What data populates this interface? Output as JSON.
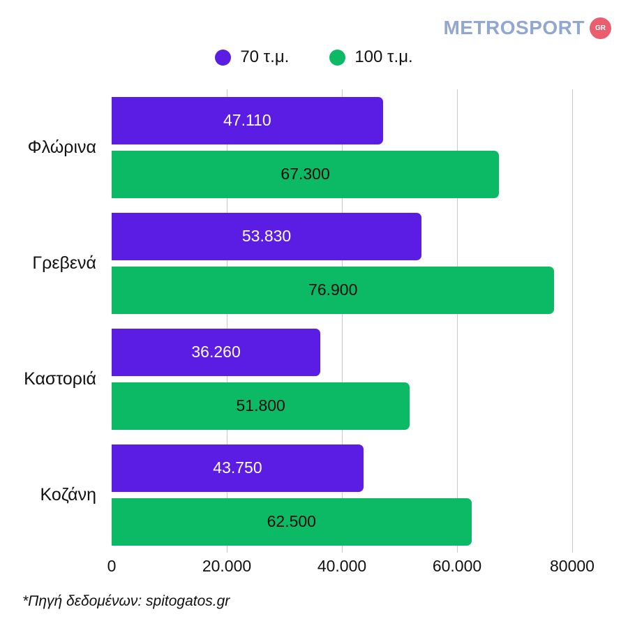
{
  "logo": {
    "text": "METROSPORT",
    "badge": "GR",
    "text_color": "#92a7cf",
    "badge_color": "#ea5e70"
  },
  "legend": [
    {
      "label": "70 τ.μ.",
      "color": "#5b1ce3"
    },
    {
      "label": "100 τ.μ.",
      "color": "#0cb965"
    }
  ],
  "chart_data": {
    "type": "bar",
    "orientation": "horizontal",
    "categories": [
      "Φλώρινα",
      "Γρεβενά",
      "Καστοριά",
      "Κοζάνη"
    ],
    "series": [
      {
        "name": "70 τ.μ.",
        "color": "#5b1ce3",
        "label_color": "#ffffff",
        "values": [
          47110,
          53830,
          36260,
          43750
        ],
        "labels": [
          "47.110",
          "53.830",
          "36.260",
          "43.750"
        ]
      },
      {
        "name": "100 τ.μ.",
        "color": "#0cb965",
        "label_color": "#0b0b0b",
        "values": [
          67300,
          76900,
          51800,
          62500
        ],
        "labels": [
          "67.300",
          "76.900",
          "51.800",
          "62.500"
        ]
      }
    ],
    "xlim": [
      0,
      80000
    ],
    "x_tick_values": [
      0,
      20000,
      40000,
      60000,
      80000
    ],
    "x_tick_labels": [
      "0",
      "20.000",
      "40.000",
      "60.000",
      "80000"
    ],
    "grid": true,
    "gridline_color": "#c9c9c9",
    "legend_position": "top"
  },
  "footer": {
    "source_note": "*Πηγή δεδομένων:  spitogatos.gr"
  }
}
